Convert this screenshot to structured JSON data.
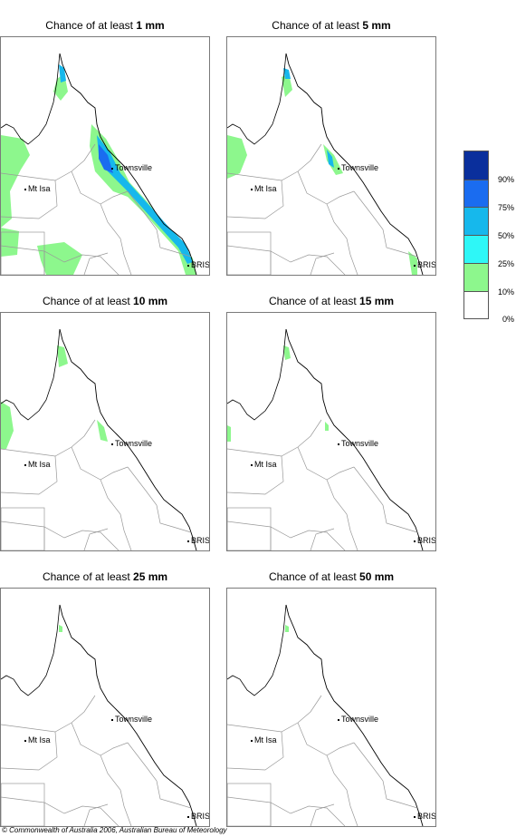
{
  "panels": [
    {
      "title_prefix": "Chance of at least ",
      "amount": "1 mm"
    },
    {
      "title_prefix": "Chance of at least ",
      "amount": "5 mm"
    },
    {
      "title_prefix": "Chance of at least ",
      "amount": "10 mm"
    },
    {
      "title_prefix": "Chance of at least ",
      "amount": "15 mm"
    },
    {
      "title_prefix": "Chance of at least ",
      "amount": "25 mm"
    },
    {
      "title_prefix": "Chance of at least ",
      "amount": "50 mm"
    }
  ],
  "places": {
    "townsville": "Townsville",
    "mt_isa": "Mt Isa",
    "bris": "BRIS"
  },
  "legend": {
    "labels": [
      "90%",
      "75%",
      "50%",
      "25%",
      "10%",
      "0%"
    ],
    "colors": [
      "#0a2f9c",
      "#1a6cf0",
      "#16b8ec",
      "#2ef7f7",
      "#8df78d",
      "#ffffff"
    ]
  },
  "copyright": "© Commonwealth of Australia 2006, Australian Bureau of Meteorology"
}
